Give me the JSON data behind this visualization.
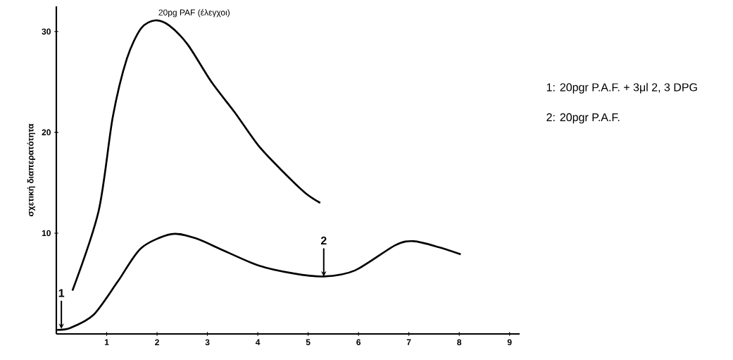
{
  "chart_data": {
    "type": "line",
    "ylabel": "σχετική διαπερατότητα",
    "xlim": [
      0,
      9.2
    ],
    "ylim": [
      0,
      32.5
    ],
    "xticks": [
      1,
      2,
      3,
      4,
      5,
      6,
      7,
      8,
      9
    ],
    "yticks": [
      10,
      20,
      30
    ],
    "series": [
      {
        "name": "20pg PAF (έλεγχοι)",
        "color": "#000000",
        "x": [
          0.32,
          0.84,
          1.12,
          1.4,
          1.68,
          1.96,
          2.24,
          2.61,
          3.08,
          3.54,
          4.01,
          4.48,
          4.94,
          5.24
        ],
        "values": [
          4.3,
          12.2,
          21.5,
          27.3,
          30.3,
          31.1,
          30.6,
          28.7,
          25,
          22,
          18.7,
          16.2,
          14,
          13
        ]
      },
      {
        "color": "#000000",
        "x": [
          0,
          0.28,
          0.74,
          1.22,
          1.68,
          2.28,
          2.76,
          3.31,
          4.01,
          4.71,
          5.31,
          5.93,
          6.73,
          7.1,
          7.6,
          8.03
        ],
        "values": [
          0.4,
          0.6,
          1.9,
          5.2,
          8.5,
          9.9,
          9.5,
          8.3,
          6.8,
          6,
          5.7,
          6.3,
          8.8,
          9.2,
          8.6,
          7.9
        ]
      }
    ],
    "annotations": [
      {
        "text": "1",
        "x": 0.1,
        "y": 0.5
      },
      {
        "text": "2",
        "x": 5.31,
        "y": 5.7
      },
      "1: 20pgr P.A.F. + 3μl 2, 3 DPG",
      "2: 20pgr P.A.F."
    ]
  }
}
